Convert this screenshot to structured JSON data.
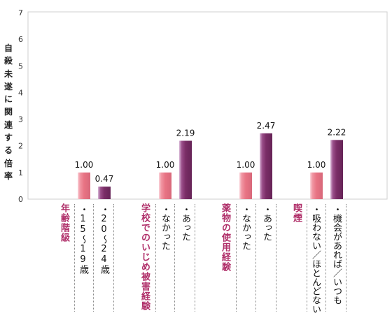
{
  "chart_data": {
    "type": "bar",
    "title": "",
    "ylabel": "自殺未遂に関連する倍率",
    "ylim": [
      0,
      7
    ],
    "yticks": [
      "0",
      "1",
      "2",
      "3",
      "4",
      "5",
      "6",
      "7"
    ],
    "grid": false,
    "colors": {
      "reference": "#e87484",
      "comparison": "#7a2d66"
    },
    "groups": [
      {
        "label": "年齢階級",
        "bars": [
          {
            "category": "・15～19歳",
            "value": 1.0,
            "value_label": "1.00",
            "kind": "reference"
          },
          {
            "category": "・20～24歳",
            "value": 0.47,
            "value_label": "0.47",
            "kind": "comparison"
          }
        ]
      },
      {
        "label": "学校でのいじめ被害経験",
        "bars": [
          {
            "category": "・なかった",
            "value": 1.0,
            "value_label": "1.00",
            "kind": "reference"
          },
          {
            "category": "・あった",
            "value": 2.19,
            "value_label": "2.19",
            "kind": "comparison"
          }
        ]
      },
      {
        "label": "薬物の使用経験",
        "bars": [
          {
            "category": "・なかった",
            "value": 1.0,
            "value_label": "1.00",
            "kind": "reference"
          },
          {
            "category": "・あった",
            "value": 2.47,
            "value_label": "2.47",
            "kind": "comparison"
          }
        ]
      },
      {
        "label": "喫煙",
        "bars": [
          {
            "category": "・吸わない／ほとんどない",
            "value": 1.0,
            "value_label": "1.00",
            "kind": "reference"
          },
          {
            "category": "・機会があれば／いつも",
            "value": 2.22,
            "value_label": "2.22",
            "kind": "comparison"
          }
        ]
      }
    ]
  }
}
